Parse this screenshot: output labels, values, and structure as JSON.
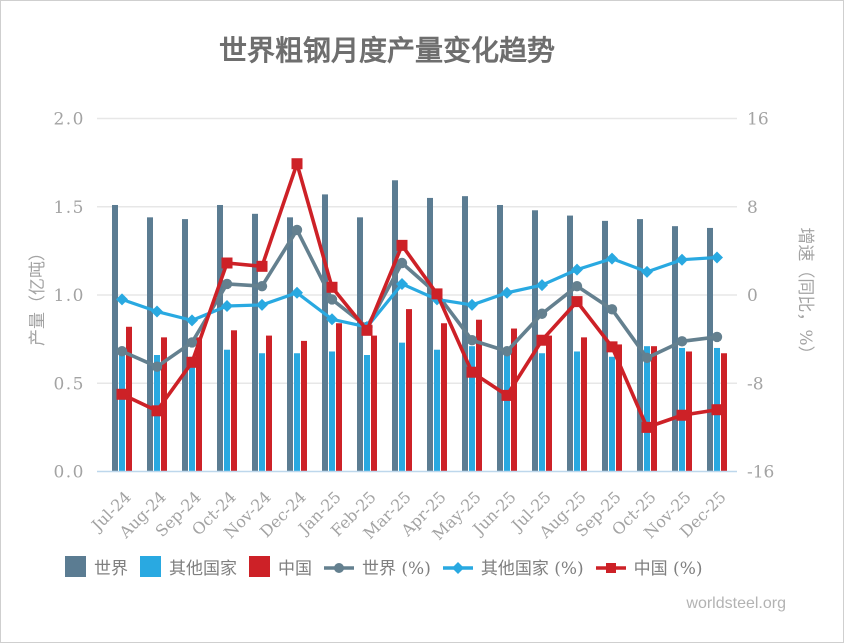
{
  "title": "世界粗钢月度产量变化趋势",
  "footer": "worldsteel.org",
  "colors": {
    "world_bar": "#5b7c92",
    "other_bar": "#29a9e1",
    "china_bar": "#cd2127",
    "world_line": "#64808f",
    "other_line": "#29a9e1",
    "china_line": "#cd2127",
    "grid": "#e7e7e7",
    "baseline": "#bdd7ec",
    "tick_text": "#a3a3a3",
    "axis_title_text": "#a3a3a3",
    "title_text": "#6e6e6e",
    "legend_text": "#7f7f7f",
    "footer_text": "#b3b3b3"
  },
  "chart_data": {
    "type": "bar+line combo",
    "title": "世界粗钢月度产量变化趋势",
    "categories": [
      "Jul-24",
      "Aug-24",
      "Sep-24",
      "Oct-24",
      "Nov-24",
      "Dec-24",
      "Jan-25",
      "Feb-25",
      "Mar-25",
      "Apr-25",
      "May-25",
      "Jun-25",
      "Jul-25",
      "Aug-25",
      "Sep-25",
      "Oct-25",
      "Nov-25",
      "Dec-25"
    ],
    "bar_series": [
      {
        "name": "世界",
        "axis": "left",
        "color": "#5b7c92",
        "values": [
          1.51,
          1.44,
          1.43,
          1.51,
          1.46,
          1.44,
          1.57,
          1.44,
          1.65,
          1.55,
          1.56,
          1.51,
          1.48,
          1.45,
          1.42,
          1.43,
          1.39,
          1.38
        ]
      },
      {
        "name": "其他国家",
        "axis": "left",
        "color": "#29a9e1",
        "values": [
          0.67,
          0.66,
          0.65,
          0.69,
          0.67,
          0.67,
          0.68,
          0.66,
          0.73,
          0.69,
          0.71,
          0.68,
          0.67,
          0.68,
          0.65,
          0.71,
          0.7,
          0.7
        ]
      },
      {
        "name": "中国",
        "axis": "left",
        "color": "#cd2127",
        "values": [
          0.82,
          0.76,
          0.76,
          0.8,
          0.77,
          0.74,
          0.84,
          0.77,
          0.92,
          0.84,
          0.86,
          0.81,
          0.77,
          0.76,
          0.72,
          0.71,
          0.68,
          0.67
        ]
      }
    ],
    "line_series": [
      {
        "name": "世界 (%)",
        "axis": "right",
        "color": "#64808f",
        "marker": "circle",
        "values": [
          -5.1,
          -6.5,
          -4.3,
          1.0,
          0.8,
          5.9,
          -0.4,
          -2.9,
          2.9,
          0.1,
          -4.1,
          -5.1,
          -1.7,
          0.8,
          -1.3,
          -5.7,
          -4.2,
          -3.8
        ]
      },
      {
        "name": "其他国家 (%)",
        "axis": "right",
        "color": "#29a9e1",
        "marker": "diamond",
        "values": [
          -0.4,
          -1.5,
          -2.3,
          -1.0,
          -0.9,
          0.2,
          -2.2,
          -2.9,
          1.0,
          -0.4,
          -0.9,
          0.2,
          0.9,
          2.3,
          3.3,
          2.1,
          3.2,
          3.4
        ]
      },
      {
        "name": "中国 (%)",
        "axis": "right",
        "color": "#cd2127",
        "marker": "square",
        "values": [
          -9.0,
          -10.5,
          -6.1,
          2.9,
          2.6,
          11.9,
          0.7,
          -3.2,
          4.5,
          0.1,
          -7.0,
          -9.1,
          -4.1,
          -0.6,
          -4.7,
          -12.0,
          -10.9,
          -10.4
        ]
      }
    ],
    "left_axis": {
      "label": "产量（亿吨）",
      "min": 0,
      "max": 2,
      "tick_labels": [
        "0.0",
        "0.5",
        "1.0",
        "1.5",
        "2.0"
      ],
      "tick_values": [
        0,
        0.5,
        1,
        1.5,
        2
      ]
    },
    "right_axis": {
      "label": "增速（同比，%）",
      "min": -16,
      "max": 16,
      "tick_labels": [
        "-16",
        "-8",
        "0",
        "8",
        "16"
      ],
      "tick_values": [
        -16,
        -8,
        0,
        8,
        16
      ]
    },
    "grid": "horizontal only",
    "legend_position": "bottom",
    "x_label_rotation_deg": -45
  },
  "legend": {
    "items": [
      {
        "label": "世界",
        "swatch": "bar"
      },
      {
        "label": "其他国家",
        "swatch": "bar"
      },
      {
        "label": "中国",
        "swatch": "bar"
      },
      {
        "label": "世界 (%)",
        "swatch": "line-circle"
      },
      {
        "label": "其他国家 (%)",
        "swatch": "line-diamond"
      },
      {
        "label": "中国 (%)",
        "swatch": "line-square"
      }
    ]
  }
}
